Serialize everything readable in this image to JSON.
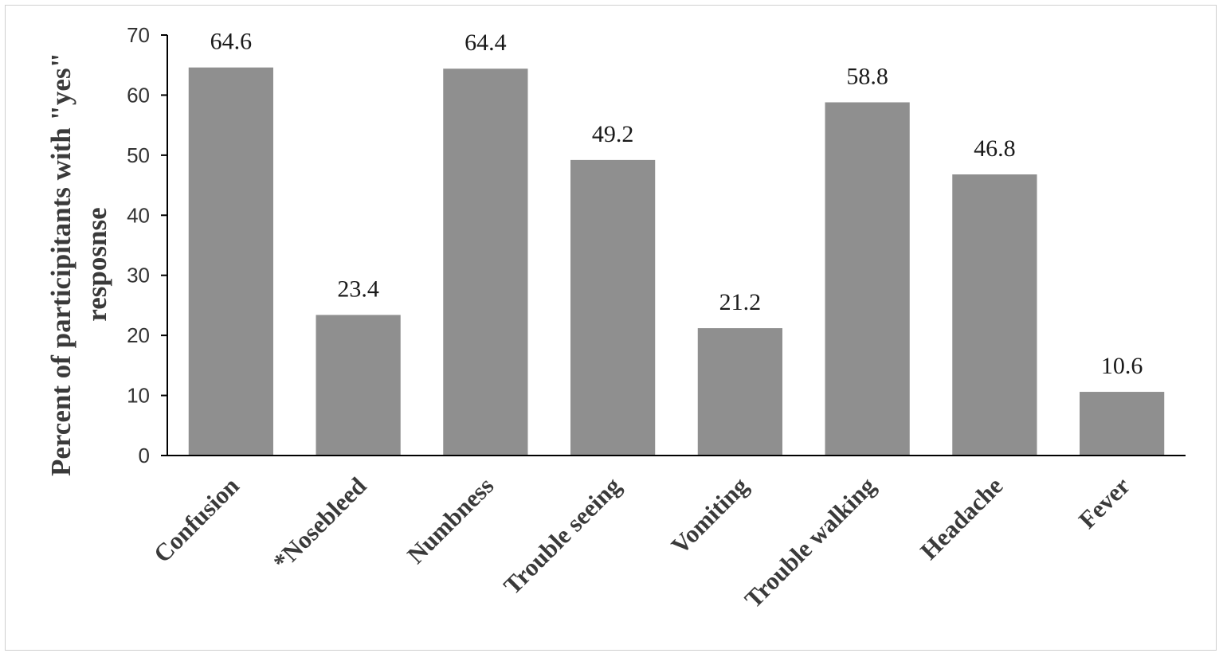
{
  "chart_data": {
    "type": "bar",
    "title": "",
    "xlabel": "",
    "ylabel_lines": [
      "Percent of participitants with \"yes\"",
      "resposnse"
    ],
    "categories": [
      "Confusion",
      "*Nosebleed",
      "Numbness",
      "Trouble seeing",
      "Vomiting",
      "Trouble walking",
      "Headache",
      "Fever"
    ],
    "values": [
      64.6,
      23.4,
      64.4,
      49.2,
      21.2,
      58.8,
      46.8,
      10.6
    ],
    "value_labels": [
      "64.6",
      "23.4",
      "64.4",
      "49.2",
      "21.2",
      "58.8",
      "46.8",
      "10.6"
    ],
    "ylim": [
      0,
      70
    ],
    "yticks": [
      0,
      10,
      20,
      30,
      40,
      50,
      60,
      70
    ],
    "grid": false,
    "legend": "none",
    "bar_color": "#8f8f8f",
    "axis_color": "#000000"
  }
}
